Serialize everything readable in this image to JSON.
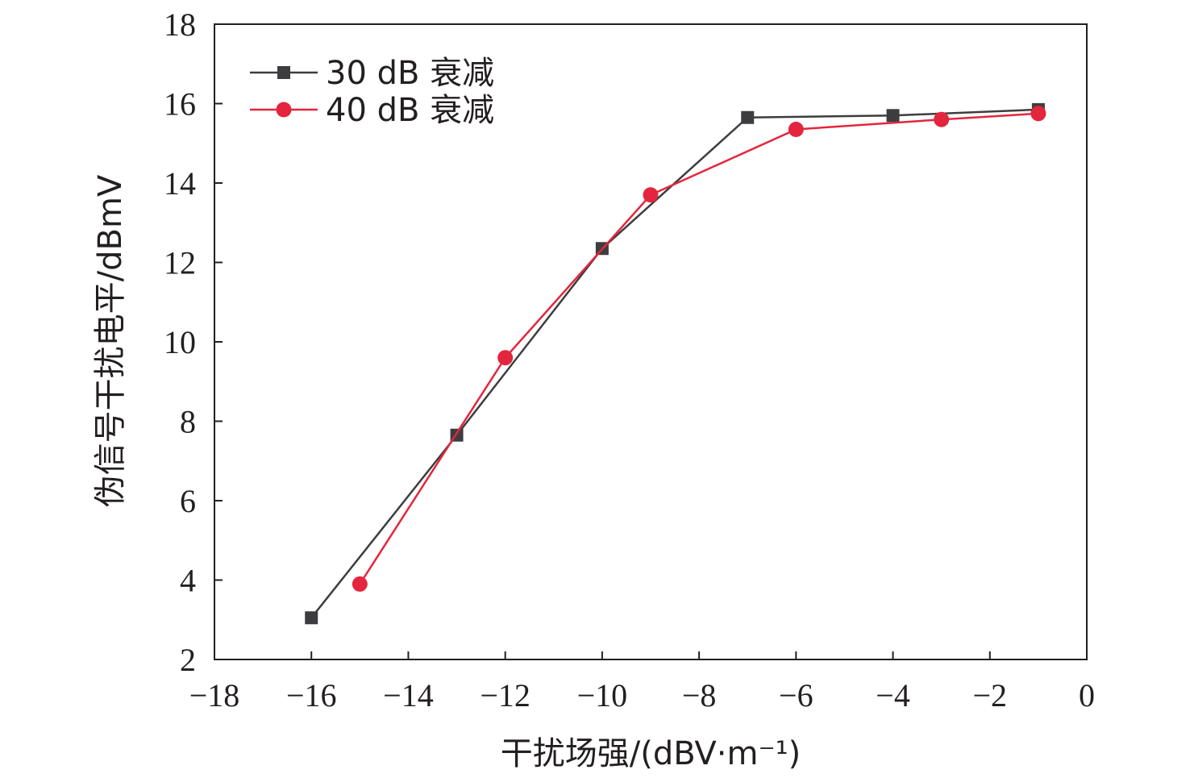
{
  "chart_data": {
    "type": "line",
    "xlabel": "干扰场强/(dBV·m⁻¹)",
    "ylabel": "伪信号干扰电平/dBmV",
    "xlim": [
      -18,
      0
    ],
    "ylim": [
      2,
      18
    ],
    "xticks": [
      -18,
      -16,
      -14,
      -12,
      -10,
      -8,
      -6,
      -4,
      -2,
      0
    ],
    "yticks": [
      2,
      4,
      6,
      8,
      10,
      12,
      14,
      16,
      18
    ],
    "xtick_labels": [
      "−18",
      "−16",
      "−14",
      "−12",
      "−10",
      "−8",
      "−6",
      "−4",
      "−2",
      "0"
    ],
    "ytick_labels": [
      "2",
      "4",
      "6",
      "8",
      "10",
      "12",
      "14",
      "16",
      "18"
    ],
    "legend_position": "top-left",
    "grid": false,
    "series": [
      {
        "name": "30 dB 衰减",
        "marker": "square",
        "color": "#3d3d3f",
        "x": [
          -16,
          -13,
          -10,
          -7,
          -4,
          -1
        ],
        "y": [
          3.05,
          7.65,
          12.35,
          15.65,
          15.7,
          15.85
        ]
      },
      {
        "name": "40 dB 衰减",
        "marker": "circle",
        "color": "#e3263d",
        "x": [
          -15,
          -12,
          -9,
          -6,
          -3,
          -1
        ],
        "y": [
          3.9,
          9.6,
          13.7,
          15.35,
          15.6,
          15.75
        ]
      }
    ]
  }
}
